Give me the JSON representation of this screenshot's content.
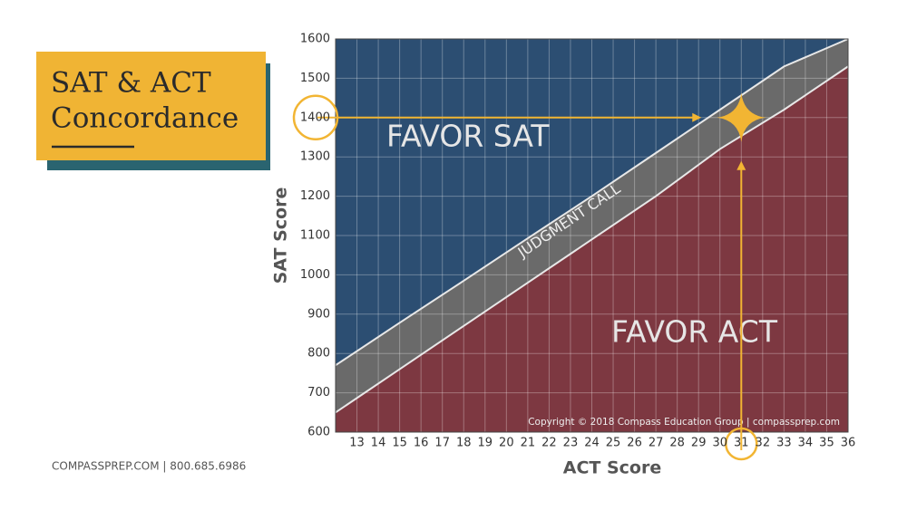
{
  "title_lines": [
    "SAT & ACT",
    "Concordance"
  ],
  "footer": "COMPASSPREP.COM  |  800.685.6986",
  "chart_data": {
    "type": "band",
    "x_label": "ACT Score",
    "y_label": "SAT Score",
    "x": [
      12,
      15,
      18,
      21,
      24,
      27,
      30,
      33,
      36
    ],
    "upper": [
      770,
      878,
      985,
      1093,
      1200,
      1310,
      1420,
      1530,
      1600
    ],
    "lower": [
      650,
      760,
      870,
      980,
      1090,
      1200,
      1320,
      1420,
      1530
    ],
    "regions": {
      "above": {
        "label": "FAVOR SAT",
        "color": "#2c4e72"
      },
      "between": {
        "label": "JUDGMENT CALL",
        "color": "#6a6a6a"
      },
      "below": {
        "label": "FAVOR ACT",
        "color": "#7d3841"
      }
    },
    "highlight": {
      "x": 31,
      "y": 1400,
      "color": "#f2b533"
    },
    "copyright": "Copyright © 2018 Compass Education Group | compassprep.com",
    "xlim": [
      12,
      36
    ],
    "ylim": [
      600,
      1600
    ],
    "xticks": [
      13,
      14,
      15,
      16,
      17,
      18,
      19,
      20,
      21,
      22,
      23,
      24,
      25,
      26,
      27,
      28,
      29,
      30,
      31,
      32,
      33,
      34,
      35,
      36
    ],
    "yticks": [
      600,
      700,
      800,
      900,
      1000,
      1100,
      1200,
      1300,
      1400,
      1500,
      1600
    ],
    "grid": true
  }
}
